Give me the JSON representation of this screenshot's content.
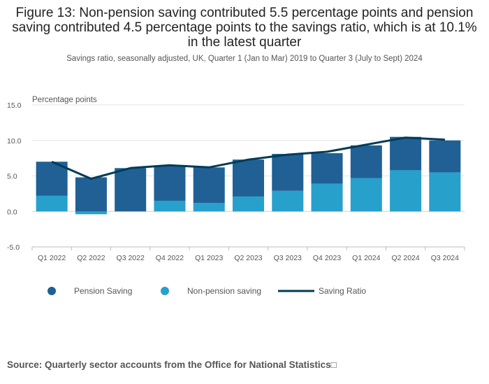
{
  "title": "Figure 13: Non-pension saving contributed 5.5 percentage points and pension saving contributed 4.5 percentage points to the savings ratio, which is at 10.1% in the latest quarter",
  "subtitle": "Savings ratio, seasonally adjusted, UK, Quarter 1 (Jan to Mar) 2019 to Quarter 3 (July to Sept) 2024",
  "source": "Source: Quarterly sector accounts from the Office for National Statistics",
  "colors": {
    "pension": "#206095",
    "non_pension": "#27a0cc",
    "ratio": "#003c57"
  },
  "chart_data": {
    "type": "bar",
    "stacked": true,
    "ylabel": "Percentage points",
    "ylim": [
      -5,
      15
    ],
    "yticks": [
      15,
      10,
      5,
      0,
      -5
    ],
    "ytick_labels": [
      "15.0",
      "10.0",
      "5.0",
      "0.0",
      "-5.0"
    ],
    "grid": true,
    "legend_position": "bottom",
    "categories": [
      "Q1 2022",
      "Q2 2022",
      "Q3 2022",
      "Q4 2022",
      "Q1 2023",
      "Q2 2023",
      "Q3 2023",
      "Q4 2023",
      "Q1 2024",
      "Q2 2024",
      "Q3 2024"
    ],
    "series": [
      {
        "name": "Pension Saving",
        "type": "bar",
        "values": [
          4.8,
          4.8,
          6.1,
          4.9,
          5.0,
          5.2,
          5.2,
          4.3,
          4.6,
          4.7,
          4.5
        ]
      },
      {
        "name": "Non-pension saving",
        "type": "bar",
        "values": [
          2.2,
          -0.4,
          0.0,
          1.5,
          1.2,
          2.1,
          2.9,
          3.9,
          4.7,
          5.8,
          5.5
        ]
      },
      {
        "name": "Saving Ratio",
        "type": "line",
        "values": [
          7.0,
          4.6,
          6.1,
          6.5,
          6.2,
          7.3,
          8.0,
          8.4,
          9.4,
          10.4,
          10.1
        ]
      }
    ]
  }
}
